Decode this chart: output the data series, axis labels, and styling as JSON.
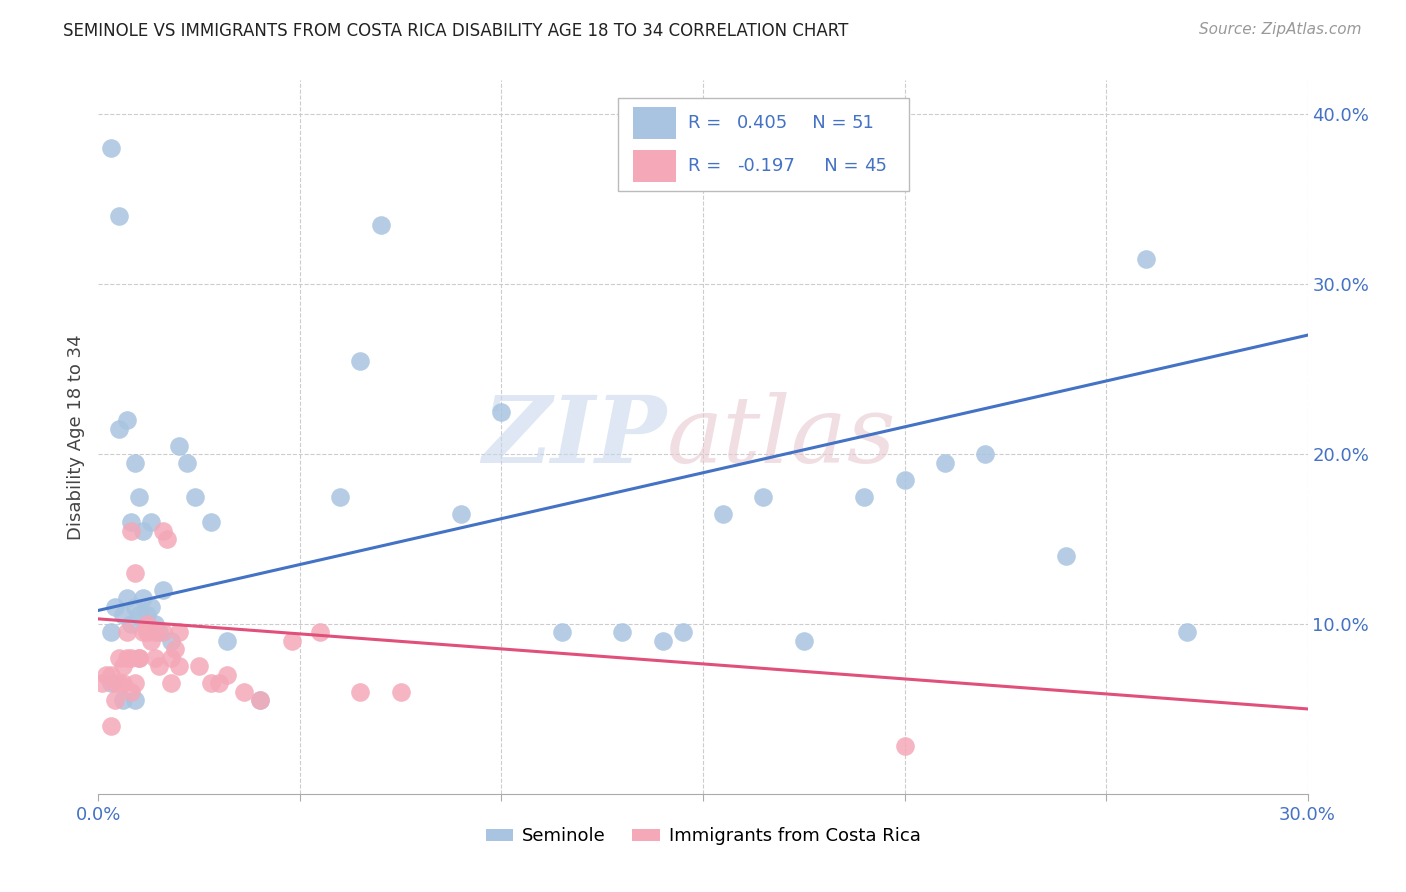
{
  "title": "SEMINOLE VS IMMIGRANTS FROM COSTA RICA DISABILITY AGE 18 TO 34 CORRELATION CHART",
  "source": "Source: ZipAtlas.com",
  "ylabel_label": "Disability Age 18 to 34",
  "xlim": [
    0.0,
    0.3
  ],
  "ylim": [
    0.0,
    0.42
  ],
  "seminole_R": 0.405,
  "seminole_N": 51,
  "costa_rica_R": -0.197,
  "costa_rica_N": 45,
  "seminole_color": "#a8c4e0",
  "costa_rica_color": "#f4a8b8",
  "seminole_line_color": "#4472c4",
  "costa_rica_line_color": "#e0507a",
  "legend_text_color": "#4472c4",
  "blue_line_y0": 0.108,
  "blue_line_y1": 0.27,
  "pink_line_y0": 0.103,
  "pink_line_y1": 0.05,
  "watermark_zip_color": "#c8d8ec",
  "watermark_atlas_color": "#e8c8d0",
  "seminole_x": [
    0.003,
    0.004,
    0.005,
    0.006,
    0.007,
    0.008,
    0.009,
    0.01,
    0.011,
    0.012,
    0.013,
    0.014,
    0.015,
    0.016,
    0.018,
    0.02,
    0.022,
    0.024,
    0.028,
    0.032,
    0.003,
    0.005,
    0.007,
    0.008,
    0.009,
    0.01,
    0.011,
    0.013,
    0.06,
    0.065,
    0.07,
    0.09,
    0.115,
    0.13,
    0.145,
    0.155,
    0.165,
    0.175,
    0.19,
    0.2,
    0.21,
    0.22,
    0.24,
    0.26,
    0.27,
    0.003,
    0.006,
    0.009,
    0.04,
    0.1,
    0.14
  ],
  "seminole_y": [
    0.095,
    0.11,
    0.215,
    0.105,
    0.115,
    0.1,
    0.11,
    0.105,
    0.115,
    0.105,
    0.11,
    0.1,
    0.095,
    0.12,
    0.09,
    0.205,
    0.195,
    0.175,
    0.16,
    0.09,
    0.38,
    0.34,
    0.22,
    0.16,
    0.195,
    0.175,
    0.155,
    0.16,
    0.175,
    0.255,
    0.335,
    0.165,
    0.095,
    0.095,
    0.095,
    0.165,
    0.175,
    0.09,
    0.175,
    0.185,
    0.195,
    0.2,
    0.14,
    0.315,
    0.095,
    0.065,
    0.055,
    0.055,
    0.055,
    0.225,
    0.09
  ],
  "costa_rica_x": [
    0.001,
    0.002,
    0.003,
    0.004,
    0.005,
    0.006,
    0.007,
    0.008,
    0.009,
    0.01,
    0.011,
    0.012,
    0.013,
    0.014,
    0.015,
    0.016,
    0.017,
    0.018,
    0.019,
    0.02,
    0.003,
    0.004,
    0.005,
    0.006,
    0.007,
    0.008,
    0.009,
    0.01,
    0.012,
    0.014,
    0.016,
    0.018,
    0.02,
    0.025,
    0.028,
    0.03,
    0.032,
    0.036,
    0.04,
    0.048,
    0.055,
    0.065,
    0.075,
    0.2,
    0.008
  ],
  "costa_rica_y": [
    0.065,
    0.07,
    0.07,
    0.065,
    0.08,
    0.075,
    0.095,
    0.06,
    0.13,
    0.08,
    0.095,
    0.1,
    0.09,
    0.095,
    0.075,
    0.155,
    0.15,
    0.08,
    0.085,
    0.095,
    0.04,
    0.055,
    0.065,
    0.065,
    0.08,
    0.08,
    0.065,
    0.08,
    0.095,
    0.08,
    0.095,
    0.065,
    0.075,
    0.075,
    0.065,
    0.065,
    0.07,
    0.06,
    0.055,
    0.09,
    0.095,
    0.06,
    0.06,
    0.028,
    0.155
  ]
}
